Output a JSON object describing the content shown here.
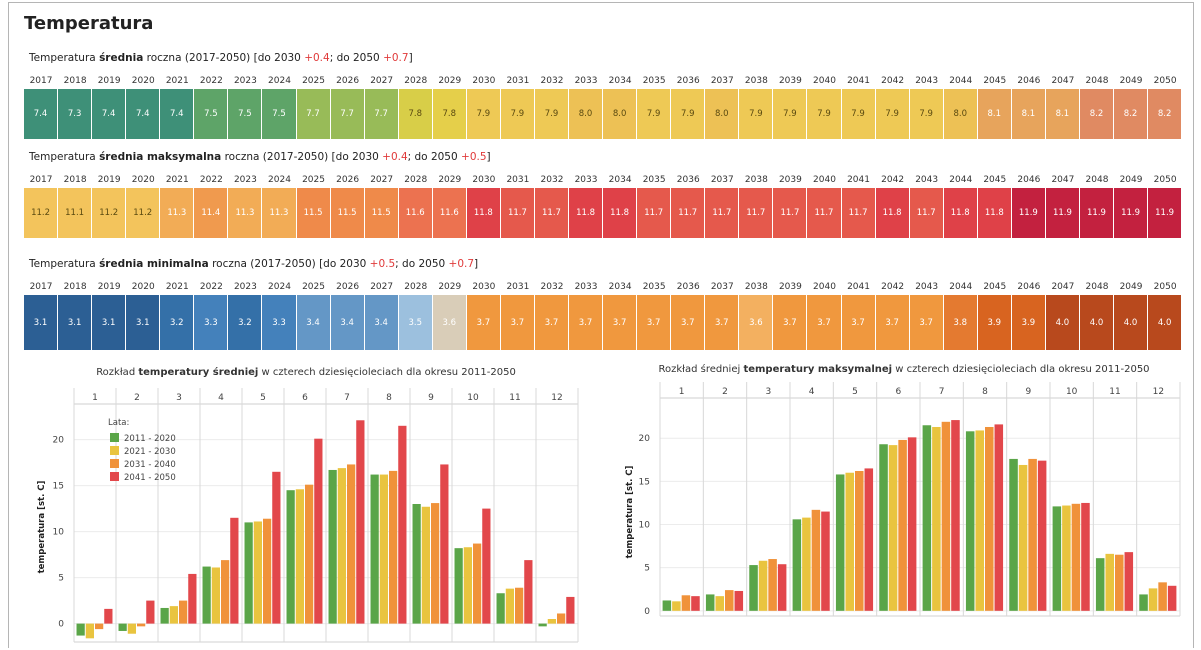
{
  "page": {
    "title": "Temperatura"
  },
  "years": [
    "2017",
    "2018",
    "2019",
    "2020",
    "2021",
    "2022",
    "2023",
    "2024",
    "2025",
    "2026",
    "2027",
    "2028",
    "2029",
    "2030",
    "2031",
    "2032",
    "2033",
    "2034",
    "2035",
    "2036",
    "2037",
    "2038",
    "2039",
    "2040",
    "2041",
    "2042",
    "2043",
    "2044",
    "2045",
    "2046",
    "2047",
    "2048",
    "2049",
    "2050"
  ],
  "sections": [
    {
      "title_pre": "Temperatura ",
      "title_bold": "średnia",
      "title_post": " roczna (2017-2050) [do 2030 ",
      "delta_2030": "+0.4",
      "mid": "; do 2050 ",
      "delta_2050": "+0.7",
      "close": "]",
      "values": [
        "7.4",
        "7.3",
        "7.4",
        "7.4",
        "7.4",
        "7.5",
        "7.5",
        "7.5",
        "7.7",
        "7.7",
        "7.7",
        "7.8",
        "7.8",
        "7.9",
        "7.9",
        "7.9",
        "8.0",
        "8.0",
        "7.9",
        "7.9",
        "8.0",
        "7.9",
        "7.9",
        "7.9",
        "7.9",
        "7.9",
        "7.9",
        "8.0",
        "8.1",
        "8.1",
        "8.1",
        "8.2",
        "8.2",
        "8.2"
      ],
      "colors": [
        "#3e9078",
        "#3e9078",
        "#3e9078",
        "#3e9078",
        "#3e9078",
        "#5ea468",
        "#5ea468",
        "#5ea468",
        "#98bb58",
        "#98bb58",
        "#98bb58",
        "#d8ce48",
        "#e5cf4a",
        "#eec955",
        "#eec955",
        "#eec955",
        "#edc155",
        "#edc155",
        "#eec955",
        "#eec955",
        "#edc155",
        "#eec955",
        "#eec955",
        "#eec955",
        "#eec955",
        "#eec955",
        "#eec955",
        "#edc155",
        "#e7a45c",
        "#e7a45c",
        "#e7a45c",
        "#e08a62",
        "#e08a62",
        "#e08a62"
      ]
    },
    {
      "title_pre": "Temperatura ",
      "title_bold": "średnia maksymalna",
      "title_post": " roczna (2017-2050) [do 2030 ",
      "delta_2030": "+0.4",
      "mid": "; do 2050 ",
      "delta_2050": "+0.5",
      "close": "]",
      "values": [
        "11.2",
        "11.1",
        "11.2",
        "11.2",
        "11.3",
        "11.4",
        "11.3",
        "11.3",
        "11.5",
        "11.5",
        "11.5",
        "11.6",
        "11.6",
        "11.8",
        "11.7",
        "11.7",
        "11.8",
        "11.8",
        "11.7",
        "11.7",
        "11.7",
        "11.7",
        "11.7",
        "11.7",
        "11.7",
        "11.8",
        "11.7",
        "11.8",
        "11.8",
        "11.9",
        "11.9",
        "11.9",
        "11.9",
        "11.9"
      ],
      "colors": [
        "#f3c45c",
        "#f3c45c",
        "#f3c45c",
        "#f3c45c",
        "#f2ac56",
        "#f09a4e",
        "#f2ac56",
        "#f2ac56",
        "#ef8a4a",
        "#ef8a4a",
        "#ef8a4a",
        "#ec7250",
        "#ec7250",
        "#df4148",
        "#e5594c",
        "#e5594c",
        "#df4148",
        "#df4148",
        "#e5594c",
        "#e5594c",
        "#e5594c",
        "#e5594c",
        "#e5594c",
        "#e5594c",
        "#e5594c",
        "#df4148",
        "#e5594c",
        "#df4148",
        "#df4148",
        "#c3213f",
        "#c3213f",
        "#c3213f",
        "#c3213f",
        "#c3213f"
      ]
    },
    {
      "title_pre": "Temperatura ",
      "title_bold": "średnia minimalna",
      "title_post": " roczna (2017-2050) [do 2030 ",
      "delta_2030": "+0.5",
      "mid": "; do 2050 ",
      "delta_2050": "+0.7",
      "close": "]",
      "values": [
        "3.1",
        "3.1",
        "3.1",
        "3.1",
        "3.2",
        "3.3",
        "3.2",
        "3.3",
        "3.4",
        "3.4",
        "3.4",
        "3.5",
        "3.6",
        "3.7",
        "3.7",
        "3.7",
        "3.7",
        "3.7",
        "3.7",
        "3.7",
        "3.7",
        "3.6",
        "3.7",
        "3.7",
        "3.7",
        "3.7",
        "3.7",
        "3.8",
        "3.9",
        "3.9",
        "4.0",
        "4.0",
        "4.0",
        "4.0"
      ],
      "colors": [
        "#2c5f94",
        "#2c5f94",
        "#2c5f94",
        "#2c5f94",
        "#3470a8",
        "#4481bb",
        "#3470a8",
        "#4481bb",
        "#6497c6",
        "#6497c6",
        "#6497c6",
        "#9cc0de",
        "#d9cdb8",
        "#f0983e",
        "#f0983e",
        "#f0983e",
        "#f0983e",
        "#f0983e",
        "#f0983e",
        "#f0983e",
        "#f0983e",
        "#f3b060",
        "#f0983e",
        "#f0983e",
        "#f0983e",
        "#f0983e",
        "#f0983e",
        "#e47a30",
        "#d86420",
        "#d86420",
        "#b8491d",
        "#b8491d",
        "#b8491d",
        "#b8491d"
      ]
    }
  ],
  "chart_data": [
    {
      "type": "bar",
      "title_pre": "Rozkład ",
      "title_bold": "temperatury średniej",
      "title_post": " w czterech dziesięcioleciach dla okresu 2011-2050",
      "categories": [
        "1",
        "2",
        "3",
        "4",
        "5",
        "6",
        "7",
        "8",
        "9",
        "10",
        "11",
        "12"
      ],
      "ylabel": "temperatura [st. C]",
      "ylim": [
        -2,
        23
      ],
      "yticks": [
        "0",
        "5",
        "10",
        "15",
        "20"
      ],
      "legend_title": "Lata:",
      "legend_position": "top-left",
      "grid": true,
      "series": [
        {
          "name": "2011 - 2020",
          "color": "#5aa548",
          "values": [
            -1.3,
            -0.8,
            1.7,
            6.2,
            11.0,
            14.5,
            16.7,
            16.2,
            13.0,
            8.2,
            3.3,
            -0.3
          ]
        },
        {
          "name": "2021 - 2030",
          "color": "#e9c43f",
          "values": [
            -1.6,
            -1.1,
            1.9,
            6.1,
            11.1,
            14.6,
            16.9,
            16.2,
            12.7,
            8.3,
            3.8,
            0.5
          ]
        },
        {
          "name": "2031 - 2040",
          "color": "#f0923a",
          "values": [
            -0.6,
            -0.3,
            2.5,
            6.9,
            11.4,
            15.1,
            17.3,
            16.6,
            13.1,
            8.7,
            3.9,
            1.1
          ]
        },
        {
          "name": "2041 - 2050",
          "color": "#e2474b",
          "values": [
            1.6,
            2.5,
            5.4,
            11.5,
            16.5,
            20.1,
            22.1,
            21.5,
            17.3,
            12.5,
            6.9,
            2.9
          ]
        }
      ]
    },
    {
      "type": "bar",
      "title_pre": "Rozkład średniej ",
      "title_bold": "temperatury maksymalnej",
      "title_post": " w czterech dziesięcioleciach dla okresu 2011-2050",
      "categories": [
        "1",
        "2",
        "3",
        "4",
        "5",
        "6",
        "7",
        "8",
        "9",
        "10",
        "11",
        "12"
      ],
      "ylabel": "temperatura [st. C]",
      "ylim": [
        -0.6,
        23.5
      ],
      "yticks": [
        "0",
        "5",
        "10",
        "15",
        "20"
      ],
      "grid": true,
      "series": [
        {
          "name": "2011 - 2020",
          "color": "#5aa548",
          "values": [
            1.2,
            1.9,
            5.3,
            10.6,
            15.8,
            19.3,
            21.5,
            20.8,
            17.6,
            12.1,
            6.1,
            1.9
          ]
        },
        {
          "name": "2021 - 2030",
          "color": "#e9c43f",
          "values": [
            1.1,
            1.7,
            5.8,
            10.8,
            16.0,
            19.2,
            21.3,
            20.9,
            16.9,
            12.2,
            6.6,
            2.6
          ]
        },
        {
          "name": "2031 - 2040",
          "color": "#f0923a",
          "values": [
            1.8,
            2.4,
            6.0,
            11.7,
            16.2,
            19.8,
            21.9,
            21.3,
            17.6,
            12.4,
            6.5,
            3.3
          ]
        },
        {
          "name": "2041 - 2050",
          "color": "#e2474b",
          "values": [
            1.7,
            2.3,
            5.4,
            11.5,
            16.5,
            20.1,
            22.1,
            21.6,
            17.4,
            12.5,
            6.8,
            2.9
          ]
        }
      ]
    }
  ]
}
